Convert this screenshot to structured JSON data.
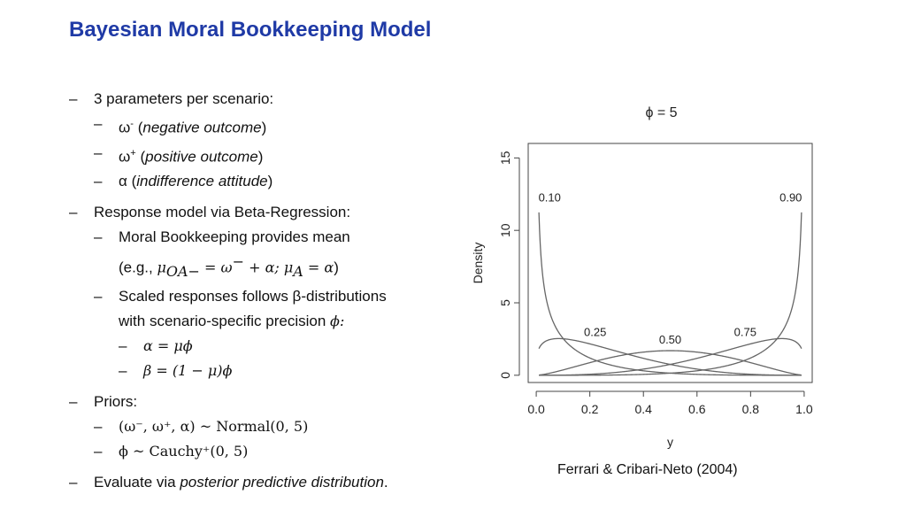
{
  "slide": {
    "title": "Bayesian Moral Bookkeeping Model",
    "b1": "3 parameters per scenario:",
    "b1_1_sym": "ω",
    "b1_1_sup": "-",
    "b1_1_open": "(",
    "b1_1_italic": "negative outcome",
    "b1_1_close": ")",
    "b1_2_sym": "ω",
    "b1_2_sup": "+",
    "b1_2_open": "(",
    "b1_2_italic": "positive outcome",
    "b1_2_close": ")",
    "b1_3_sym": "α",
    "b1_3_open": "(",
    "b1_3_italic": "indifference attitude",
    "b1_3_close": ")",
    "b2": "Response model via Beta-Regression:",
    "b2_1": "Moral Bookkeeping provides mean",
    "b2_1_cont_prefix": "(e.g., ",
    "b2_1_cont_math": "μ",
    "b2_1_cont_sub": "OA−",
    "b2_1_cont_math2": " = ω",
    "b2_1_cont_sup": "−",
    "b2_1_cont_math3": " + α; μ",
    "b2_1_cont_sub2": "A",
    "b2_1_cont_math4": " = α",
    "b2_1_cont_suffix": ")",
    "b2_2": "Scaled responses follows β-distributions",
    "b2_2_cont": "with scenario-specific precision ",
    "b2_2_cont_math": "ϕ:",
    "b2_2_1": "α = μϕ",
    "b2_2_2": "β = (1 − μ)ϕ",
    "b3": "Priors:",
    "b3_1_math": "(ω⁻, ω⁺, α) ~ Normal(0, 5)",
    "b3_2_math": "ϕ ~ Cauchy⁺(0, 5)",
    "b4_prefix": "Evaluate via ",
    "b4_italic": "posterior predictive distribution",
    "b4_suffix": ".",
    "dash": "–",
    "caption": "Ferrari & Cribari-Neto (2004)"
  },
  "chart_data": {
    "type": "line",
    "title": "ϕ = 5",
    "xlabel": "y",
    "ylabel": "Density",
    "xlim": [
      0,
      1
    ],
    "ylim": [
      0,
      15
    ],
    "xticks": [
      "0.0",
      "0.2",
      "0.4",
      "0.6",
      "0.8",
      "1.0"
    ],
    "yticks": [
      "0",
      "5",
      "10",
      "15"
    ],
    "grid": false,
    "series": [
      {
        "name": "0.10",
        "mu": 0.1,
        "phi": 5
      },
      {
        "name": "0.25",
        "mu": 0.25,
        "phi": 5
      },
      {
        "name": "0.50",
        "mu": 0.5,
        "phi": 5
      },
      {
        "name": "0.75",
        "mu": 0.75,
        "phi": 5
      },
      {
        "name": "0.90",
        "mu": 0.9,
        "phi": 5
      }
    ],
    "labels": [
      {
        "text": "0.10",
        "x": 0.05,
        "y": 12.0
      },
      {
        "text": "0.25",
        "x": 0.22,
        "y": 2.7
      },
      {
        "text": "0.50",
        "x": 0.5,
        "y": 2.2
      },
      {
        "text": "0.75",
        "x": 0.78,
        "y": 2.7
      },
      {
        "text": "0.90",
        "x": 0.95,
        "y": 12.0
      }
    ],
    "line_color": "#666666"
  }
}
